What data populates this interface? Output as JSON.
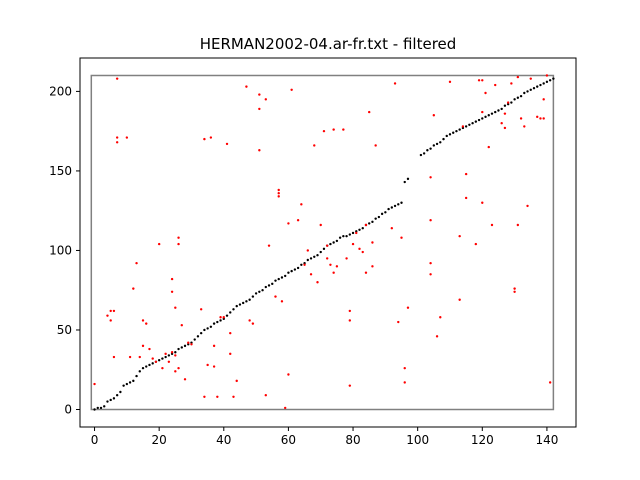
{
  "chart_data": {
    "type": "scatter",
    "title": "HERMAN2002-04.ar-fr.txt - filtered",
    "xlabel": "",
    "ylabel": "",
    "xlim": [
      -4.5,
      149
    ],
    "ylim": [
      -11,
      221
    ],
    "xticks": [
      0,
      20,
      40,
      60,
      80,
      100,
      120,
      140
    ],
    "yticks": [
      0,
      50,
      100,
      150,
      200
    ],
    "grid": false,
    "legend": "none",
    "bounding_box": {
      "x": [
        -1,
        142
      ],
      "y": [
        0,
        210
      ],
      "color": "#808080"
    },
    "series": [
      {
        "color": "#000000",
        "description": "alignment path",
        "points": [
          [
            0,
            0
          ],
          [
            1,
            1
          ],
          [
            2,
            1
          ],
          [
            3,
            2
          ],
          [
            4,
            5
          ],
          [
            5,
            6
          ],
          [
            6,
            7
          ],
          [
            7,
            9
          ],
          [
            8,
            11
          ],
          [
            9,
            15
          ],
          [
            10,
            16
          ],
          [
            11,
            17
          ],
          [
            12,
            18
          ],
          [
            13,
            21
          ],
          [
            14,
            24
          ],
          [
            15,
            26
          ],
          [
            16,
            27
          ],
          [
            17,
            28
          ],
          [
            18,
            29
          ],
          [
            19,
            30
          ],
          [
            20,
            31
          ],
          [
            21,
            32
          ],
          [
            22,
            33
          ],
          [
            23,
            34
          ],
          [
            24,
            35
          ],
          [
            25,
            36
          ],
          [
            26,
            38
          ],
          [
            27,
            39
          ],
          [
            28,
            40
          ],
          [
            29,
            41
          ],
          [
            30,
            42
          ],
          [
            31,
            44
          ],
          [
            32,
            46
          ],
          [
            33,
            48
          ],
          [
            34,
            50
          ],
          [
            35,
            51
          ],
          [
            36,
            52
          ],
          [
            37,
            54
          ],
          [
            38,
            55
          ],
          [
            39,
            56
          ],
          [
            40,
            57
          ],
          [
            41,
            59
          ],
          [
            42,
            61
          ],
          [
            43,
            63
          ],
          [
            44,
            65
          ],
          [
            45,
            66
          ],
          [
            46,
            67
          ],
          [
            47,
            68
          ],
          [
            48,
            69
          ],
          [
            49,
            71
          ],
          [
            50,
            73
          ],
          [
            51,
            74
          ],
          [
            52,
            75
          ],
          [
            53,
            77
          ],
          [
            54,
            78
          ],
          [
            55,
            79
          ],
          [
            56,
            81
          ],
          [
            57,
            82
          ],
          [
            58,
            83
          ],
          [
            59,
            84
          ],
          [
            60,
            86
          ],
          [
            61,
            87
          ],
          [
            62,
            88
          ],
          [
            63,
            89
          ],
          [
            64,
            91
          ],
          [
            65,
            92
          ],
          [
            66,
            94
          ],
          [
            67,
            95
          ],
          [
            68,
            96
          ],
          [
            69,
            97
          ],
          [
            70,
            99
          ],
          [
            71,
            101
          ],
          [
            72,
            103
          ],
          [
            73,
            104
          ],
          [
            74,
            105
          ],
          [
            75,
            106
          ],
          [
            76,
            108
          ],
          [
            77,
            109
          ],
          [
            78,
            109
          ],
          [
            79,
            110
          ],
          [
            80,
            111
          ],
          [
            81,
            112
          ],
          [
            82,
            113
          ],
          [
            83,
            114
          ],
          [
            84,
            116
          ],
          [
            85,
            117
          ],
          [
            86,
            118
          ],
          [
            87,
            120
          ],
          [
            88,
            121
          ],
          [
            89,
            123
          ],
          [
            90,
            124
          ],
          [
            91,
            126
          ],
          [
            92,
            127
          ],
          [
            93,
            128
          ],
          [
            94,
            129
          ],
          [
            95,
            130
          ],
          [
            96,
            143
          ],
          [
            97,
            145
          ],
          [
            101,
            160
          ],
          [
            102,
            161
          ],
          [
            103,
            163
          ],
          [
            104,
            164
          ],
          [
            105,
            166
          ],
          [
            106,
            167
          ],
          [
            107,
            168
          ],
          [
            108,
            170
          ],
          [
            109,
            172
          ],
          [
            110,
            173
          ],
          [
            111,
            174
          ],
          [
            112,
            175
          ],
          [
            113,
            176
          ],
          [
            114,
            177
          ],
          [
            115,
            178
          ],
          [
            116,
            179
          ],
          [
            117,
            180
          ],
          [
            118,
            181
          ],
          [
            119,
            182
          ],
          [
            120,
            183
          ],
          [
            121,
            184
          ],
          [
            122,
            185
          ],
          [
            123,
            186
          ],
          [
            124,
            187
          ],
          [
            125,
            188
          ],
          [
            126,
            189
          ],
          [
            127,
            191
          ],
          [
            128,
            192
          ],
          [
            129,
            193
          ],
          [
            130,
            195
          ],
          [
            131,
            196
          ],
          [
            132,
            197
          ],
          [
            133,
            199
          ],
          [
            134,
            200
          ],
          [
            135,
            201
          ],
          [
            136,
            202
          ],
          [
            137,
            203
          ],
          [
            138,
            204
          ],
          [
            139,
            205
          ],
          [
            140,
            206
          ],
          [
            141,
            207
          ],
          [
            142,
            208
          ]
        ]
      },
      {
        "color": "#ff0000",
        "description": "filtered candidates",
        "points": [
          [
            0,
            16
          ],
          [
            4,
            59
          ],
          [
            5,
            62
          ],
          [
            5,
            56
          ],
          [
            6,
            62
          ],
          [
            6,
            33
          ],
          [
            7,
            208
          ],
          [
            7,
            171
          ],
          [
            7,
            168
          ],
          [
            10,
            171
          ],
          [
            11,
            33
          ],
          [
            12,
            76
          ],
          [
            13,
            92
          ],
          [
            14,
            33
          ],
          [
            15,
            56
          ],
          [
            15,
            40
          ],
          [
            16,
            54
          ],
          [
            17,
            38
          ],
          [
            18,
            32
          ],
          [
            19,
            30
          ],
          [
            20,
            104
          ],
          [
            21,
            26
          ],
          [
            22,
            35
          ],
          [
            23,
            30
          ],
          [
            24,
            36
          ],
          [
            24,
            82
          ],
          [
            24,
            74
          ],
          [
            25,
            64
          ],
          [
            25,
            24
          ],
          [
            25,
            34
          ],
          [
            26,
            108
          ],
          [
            26,
            104
          ],
          [
            26,
            26
          ],
          [
            27,
            53
          ],
          [
            28,
            19
          ],
          [
            29,
            42
          ],
          [
            30,
            41
          ],
          [
            33,
            63
          ],
          [
            34,
            170
          ],
          [
            34,
            8
          ],
          [
            35,
            28
          ],
          [
            36,
            171
          ],
          [
            37,
            40
          ],
          [
            37,
            27
          ],
          [
            38,
            8
          ],
          [
            39,
            58
          ],
          [
            40,
            58
          ],
          [
            41,
            167
          ],
          [
            42,
            48
          ],
          [
            42,
            35
          ],
          [
            43,
            8
          ],
          [
            44,
            18
          ],
          [
            47,
            203
          ],
          [
            48,
            56
          ],
          [
            49,
            54
          ],
          [
            51,
            198
          ],
          [
            51,
            163
          ],
          [
            51,
            189
          ],
          [
            53,
            195
          ],
          [
            53,
            9
          ],
          [
            54,
            103
          ],
          [
            56,
            71
          ],
          [
            57,
            136
          ],
          [
            57,
            134
          ],
          [
            57,
            138
          ],
          [
            58,
            68
          ],
          [
            59,
            1
          ],
          [
            60,
            117
          ],
          [
            60,
            22
          ],
          [
            61,
            201
          ],
          [
            63,
            119
          ],
          [
            64,
            129
          ],
          [
            65,
            91
          ],
          [
            66,
            100
          ],
          [
            67,
            85
          ],
          [
            68,
            166
          ],
          [
            69,
            80
          ],
          [
            70,
            116
          ],
          [
            71,
            175
          ],
          [
            72,
            103
          ],
          [
            72,
            95
          ],
          [
            73,
            91
          ],
          [
            74,
            176
          ],
          [
            74,
            86
          ],
          [
            75,
            90
          ],
          [
            77,
            176
          ],
          [
            78,
            95
          ],
          [
            79,
            62
          ],
          [
            79,
            56
          ],
          [
            79,
            15
          ],
          [
            80,
            104
          ],
          [
            81,
            111
          ],
          [
            82,
            101
          ],
          [
            83,
            99
          ],
          [
            84,
            86
          ],
          [
            84,
            116
          ],
          [
            85,
            187
          ],
          [
            86,
            90
          ],
          [
            86,
            105
          ],
          [
            87,
            166
          ],
          [
            92,
            114
          ],
          [
            93,
            205
          ],
          [
            94,
            55
          ],
          [
            95,
            108
          ],
          [
            96,
            26
          ],
          [
            96,
            17
          ],
          [
            97,
            64
          ],
          [
            104,
            146
          ],
          [
            104,
            119
          ],
          [
            104,
            85
          ],
          [
            104,
            92
          ],
          [
            105,
            185
          ],
          [
            106,
            46
          ],
          [
            107,
            58
          ],
          [
            110,
            206
          ],
          [
            113,
            69
          ],
          [
            113,
            109
          ],
          [
            114,
            178
          ],
          [
            115,
            148
          ],
          [
            115,
            133
          ],
          [
            118,
            104
          ],
          [
            119,
            207
          ],
          [
            120,
            207
          ],
          [
            120,
            130
          ],
          [
            120,
            187
          ],
          [
            121,
            199
          ],
          [
            122,
            165
          ],
          [
            123,
            116
          ],
          [
            124,
            204
          ],
          [
            126,
            180
          ],
          [
            127,
            177
          ],
          [
            127,
            186
          ],
          [
            128,
            193
          ],
          [
            129,
            205
          ],
          [
            130,
            74
          ],
          [
            130,
            76
          ],
          [
            131,
            116
          ],
          [
            131,
            209
          ],
          [
            132,
            183
          ],
          [
            133,
            178
          ],
          [
            134,
            128
          ],
          [
            135,
            208
          ],
          [
            137,
            184
          ],
          [
            138,
            183
          ],
          [
            139,
            183
          ],
          [
            139,
            195
          ],
          [
            140,
            210
          ],
          [
            141,
            17
          ]
        ]
      }
    ]
  }
}
